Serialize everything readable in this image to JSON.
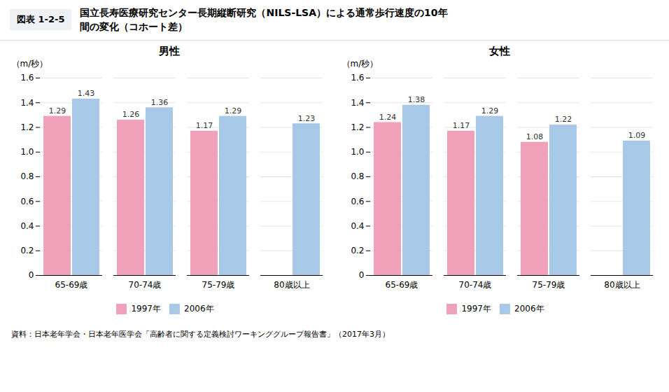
{
  "title": "国立長寿医療研究センター長期縦断研究（NILS-LSA）による通常歩行速度の10年\n間の変化（コホート差）",
  "annotations": [
    "図表 1-2-5",
    "資料：日本老年学会・日本老年医学会「高齢者に関する定義検討ワーキンググループ報告書」（2017年3月）"
  ],
  "chart_data": [
    {
      "type": "bar",
      "title": "男性",
      "ylabel": "（m/秒）",
      "categories": [
        "65-69歳",
        "70-74歳",
        "75-79歳",
        "80歳以上"
      ],
      "series": [
        {
          "name": "1997年",
          "color": "#f0a0b8",
          "values": [
            1.29,
            1.26,
            1.17,
            null
          ]
        },
        {
          "name": "2006年",
          "color": "#a8c8e8",
          "values": [
            1.43,
            1.36,
            1.29,
            1.23
          ]
        }
      ],
      "ylim": [
        0,
        1.6
      ],
      "yticks": [
        0,
        0.2,
        0.4,
        0.6,
        0.8,
        {
          "value": 1.0,
          "label": "1.0"
        },
        1.2,
        1.4,
        1.6
      ],
      "grid": true,
      "data_labels": true,
      "legend": "bottom"
    },
    {
      "type": "bar",
      "title": "女性",
      "ylabel": "（m/秒）",
      "categories": [
        "65-69歳",
        "70-74歳",
        "75-79歳",
        "80歳以上"
      ],
      "series": [
        {
          "name": "1997年",
          "color": "#f0a0b8",
          "values": [
            1.24,
            1.17,
            1.08,
            null
          ]
        },
        {
          "name": "2006年",
          "color": "#a8c8e8",
          "values": [
            1.38,
            1.29,
            1.22,
            1.09
          ]
        }
      ],
      "ylim": [
        0,
        1.6
      ],
      "yticks": [
        0,
        0.2,
        0.4,
        0.6,
        0.8,
        {
          "value": 1.0,
          "label": "1.0"
        },
        1.2,
        1.4,
        1.6
      ],
      "grid": true,
      "data_labels": true,
      "legend": "bottom"
    }
  ]
}
